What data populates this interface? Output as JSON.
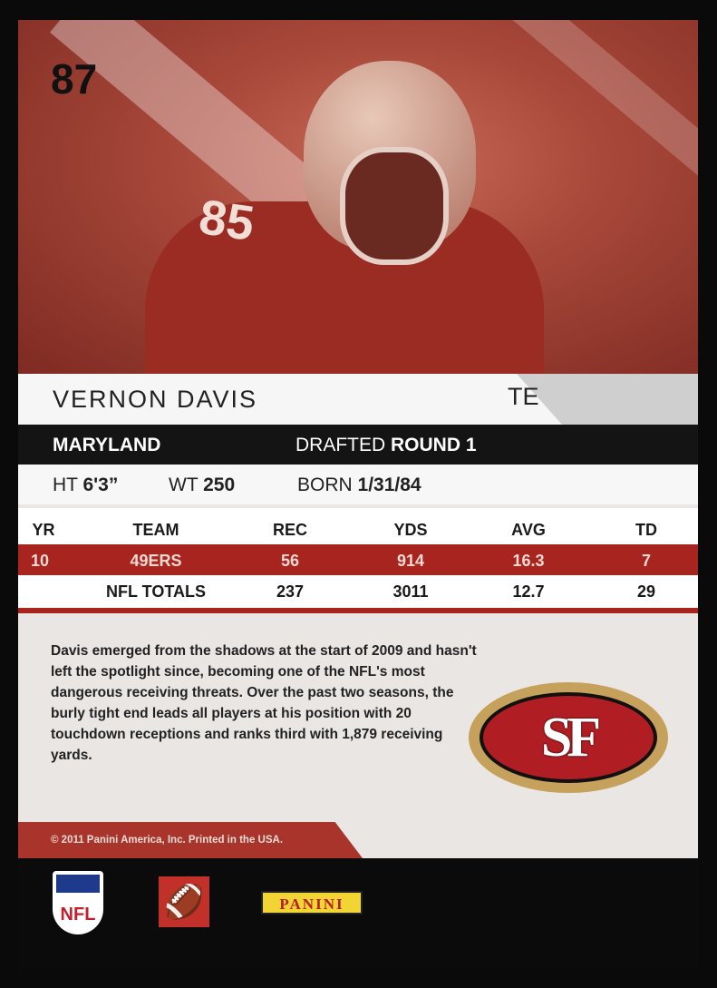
{
  "card": {
    "number": "87",
    "jersey_number": "85",
    "player_name": "VERNON DAVIS",
    "position": "TE",
    "college": "MARYLAND",
    "drafted_label": "DRAFTED",
    "drafted_value": "ROUND 1",
    "height_label": "HT",
    "height_value": "6'3”",
    "weight_label": "WT",
    "weight_value": "250",
    "born_label": "BORN",
    "born_value": "1/31/84"
  },
  "stats": {
    "headers": [
      "YR",
      "TEAM",
      "REC",
      "YDS",
      "AVG",
      "TD"
    ],
    "team_row": [
      "10",
      "49ERS",
      "56",
      "914",
      "16.3",
      "7"
    ],
    "totals_row": [
      "",
      "NFL TOTALS",
      "237",
      "3011",
      "12.7",
      "29"
    ]
  },
  "bio": "Davis emerged from the shadows at the start of 2009 and hasn't left the spotlight since, becoming one of the NFL's most dangerous receiving threats. Over the past two seasons, the burly tight end leads all players at his position with 20 touchdown receptions and ranks third with 1,879 receiving yards.",
  "team_logo": "SF",
  "copyright": "© 2011 Panini America, Inc. Printed in the USA.",
  "logos": {
    "nfl": "NFL",
    "panini": "PANINI",
    "players_icon": "football-player-icon"
  },
  "colors": {
    "team_red": "#a8241f",
    "gold": "#c6a15b",
    "black": "#141414"
  }
}
